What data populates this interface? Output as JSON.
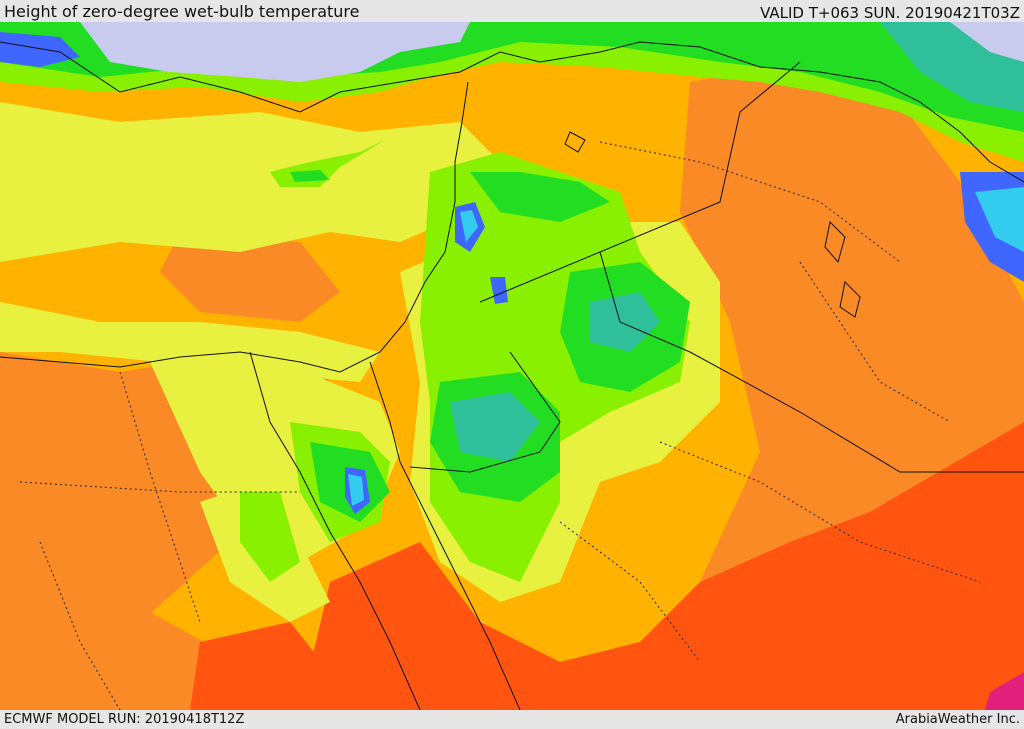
{
  "header": {
    "title": "Height of zero-degree wet-bulb temperature",
    "valid": "VALID T+063 SUN. 20190421T03Z"
  },
  "footer": {
    "model_run": "ECMWF MODEL RUN: 20190418T12Z",
    "credit": "ArabiaWeather Inc."
  },
  "colors": {
    "sea_cold": "#c8cbee",
    "blue": "#3f66ff",
    "cyan": "#33ccee",
    "teal": "#2fbf9a",
    "green": "#22dd22",
    "lime": "#88f000",
    "yellow_green": "#c8f030",
    "yellow": "#e8f040",
    "orange_yellow": "#ffb300",
    "orange": "#f98a26",
    "red_orange": "#ff5511",
    "magenta": "#e0207a"
  }
}
